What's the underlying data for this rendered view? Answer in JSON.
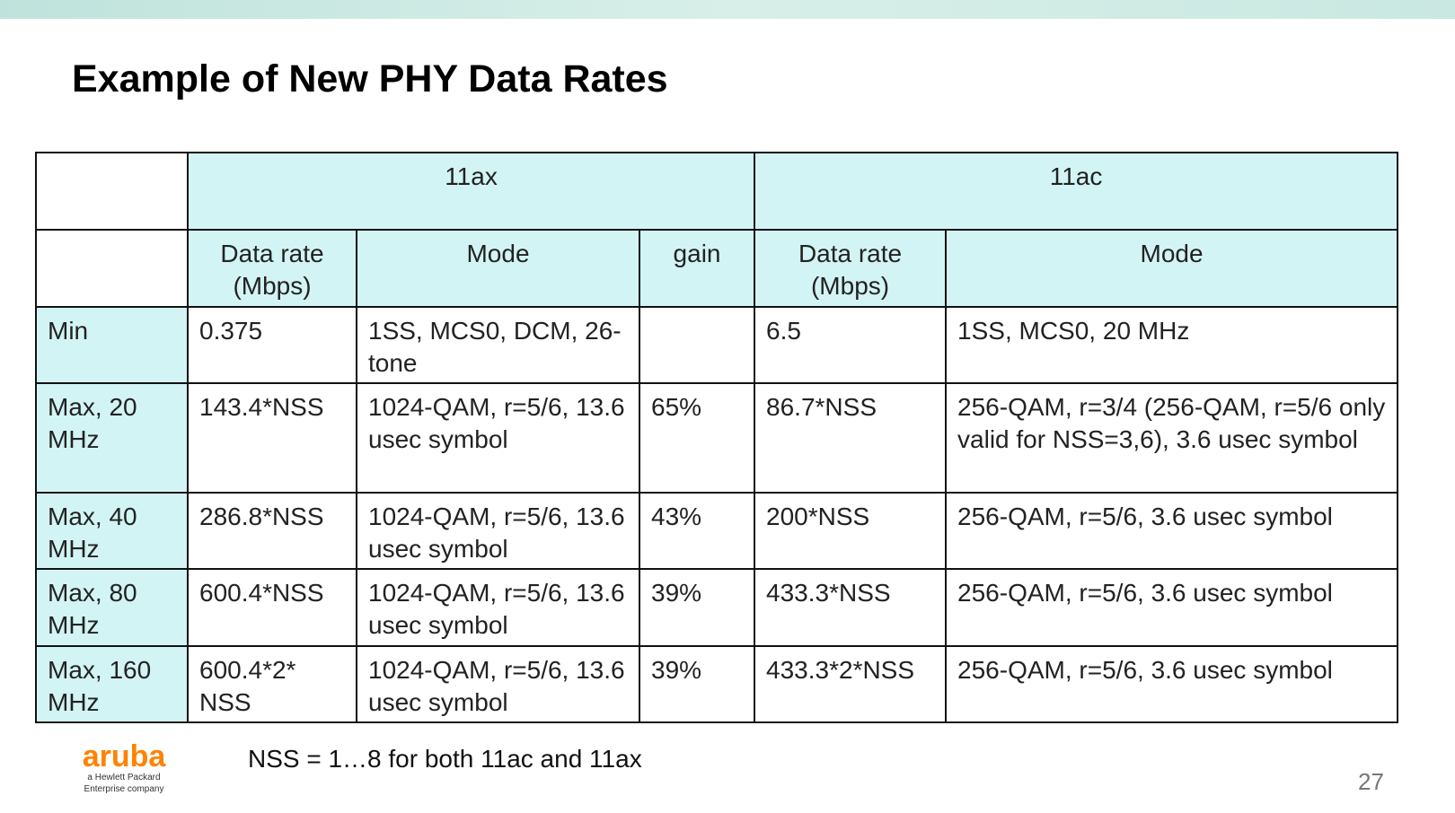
{
  "header": {
    "title": "Example of New PHY Data Rates"
  },
  "table": {
    "groups": [
      "11ax",
      "11ac"
    ],
    "columns": [
      "Data rate (Mbps)",
      "Mode",
      "gain",
      "Data rate (Mbps)",
      "Mode"
    ],
    "rows": [
      {
        "label": "Min",
        "ax_rate": "0.375",
        "ax_mode": "1SS, MCS0, DCM, 26-tone",
        "ac_rate": "6.5",
        "ac_mode": "1SS, MCS0, 20 MHz"
      },
      {
        "label": "Max, 20 MHz",
        "ax_rate": "143.4*NSS",
        "ax_mode": "1024-QAM, r=5/6, 13.6 usec symbol",
        "gain": "65%",
        "ac_rate": "86.7*NSS",
        "ac_mode": "256-QAM, r=3/4 (256-QAM, r=5/6 only valid for NSS=3,6), 3.6 usec symbol"
      },
      {
        "label": "Max, 40 MHz",
        "ax_rate": "286.8*NSS",
        "ax_mode": "1024-QAM, r=5/6, 13.6 usec symbol",
        "gain": "43%",
        "ac_rate": "200*NSS",
        "ac_mode": "256-QAM, r=5/6, 3.6 usec symbol"
      },
      {
        "label": "Max, 80 MHz",
        "ax_rate": "600.4*NSS",
        "ax_mode": "1024-QAM, r=5/6, 13.6 usec symbol",
        "gain": "39%",
        "ac_rate": "433.3*NSS",
        "ac_mode": "256-QAM, r=5/6, 3.6 usec symbol"
      },
      {
        "label": "Max, 160 MHz",
        "ax_rate": "600.4*2* NSS",
        "ax_mode": "1024-QAM, r=5/6, 13.6 usec symbol",
        "gain": "39%",
        "ac_rate": "433.3*2*NSS",
        "ac_mode": "256-QAM, r=5/6, 3.6 usec symbol"
      }
    ]
  },
  "footnote": "NSS = 1…8 for both 11ac and 11ax",
  "logo": {
    "brand": "aruba",
    "tagline": "a Hewlett Packard Enterprise company"
  },
  "page_number": "27"
}
